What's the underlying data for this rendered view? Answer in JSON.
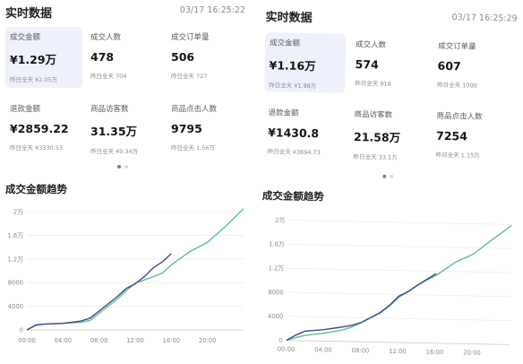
{
  "panels": [
    {
      "title": "实时数据",
      "time": "03/17 16:25:22",
      "metrics": [
        {
          "label": "成交金额",
          "value": "¥1.29万",
          "sub_label": "昨日全天",
          "sub_value": "¥2.05万"
        },
        {
          "label": "成交人数",
          "value": "478",
          "sub_label": "昨日全天",
          "sub_value": "704"
        },
        {
          "label": "成交订单量",
          "value": "506",
          "sub_label": "昨日全天",
          "sub_value": "727"
        },
        {
          "label": "退款金额",
          "value": "¥2859.22",
          "sub_label": "昨日全天",
          "sub_value": "¥3330.53"
        },
        {
          "label": "商品访客数",
          "value": "31.35万",
          "sub_label": "昨日全天",
          "sub_value": "49.34万"
        },
        {
          "label": "商品点击人数",
          "value": "9795",
          "sub_label": "昨日全天",
          "sub_value": "1.56万"
        }
      ],
      "active_metric": 0,
      "trend_title": "成交金额趋势"
    },
    {
      "title": "实时数据",
      "time": "03/17 16:25:29",
      "metrics": [
        {
          "label": "成交金额",
          "value": "¥1.16万",
          "sub_label": "昨日全天",
          "sub_value": "¥1.98万"
        },
        {
          "label": "成交人数",
          "value": "574",
          "sub_label": "昨日全天",
          "sub_value": "918"
        },
        {
          "label": "成交订单量",
          "value": "607",
          "sub_label": "昨日全天",
          "sub_value": "1000"
        },
        {
          "label": "退款金额",
          "value": "¥1430.8",
          "sub_label": "昨日全天",
          "sub_value": "¥3694.73"
        },
        {
          "label": "商品访客数",
          "value": "21.58万",
          "sub_label": "昨日全天",
          "sub_value": "33.1万"
        },
        {
          "label": "商品点击人数",
          "value": "7254",
          "sub_label": "昨日全天",
          "sub_value": "1.15万"
        }
      ],
      "active_metric": 0,
      "trend_title": "成交金额趋势"
    }
  ],
  "colors": {
    "today": "#3b4a8c",
    "yesterday": "#5bbf94",
    "active_card": "#eef1fb"
  },
  "chart_data": [
    {
      "type": "line",
      "x_labels": [
        "00:00",
        "04:00",
        "08:00",
        "12:00",
        "16:00",
        "20:00"
      ],
      "y_labels": [
        "0",
        "4000",
        "8000",
        "1.2万",
        "1.6万",
        "2万"
      ],
      "ylim": [
        0,
        20000
      ],
      "xlim": [
        0,
        24
      ],
      "grid": true,
      "series": [
        {
          "key": "today",
          "color": "#3b4a8c",
          "points": [
            [
              0,
              0
            ],
            [
              1,
              800
            ],
            [
              2,
              1000
            ],
            [
              4,
              1100
            ],
            [
              6,
              1500
            ],
            [
              7,
              2000
            ],
            [
              8,
              3200
            ],
            [
              10,
              5600
            ],
            [
              11,
              7000
            ],
            [
              12,
              7800
            ],
            [
              13,
              9000
            ],
            [
              14,
              10500
            ],
            [
              15,
              11500
            ],
            [
              16,
              12900
            ]
          ]
        },
        {
          "key": "yesterday",
          "color": "#5bbf94",
          "points": [
            [
              0,
              0
            ],
            [
              1,
              900
            ],
            [
              2,
              1000
            ],
            [
              4,
              1100
            ],
            [
              6,
              1300
            ],
            [
              7,
              1600
            ],
            [
              8,
              2800
            ],
            [
              10,
              5200
            ],
            [
              11,
              6600
            ],
            [
              12,
              7900
            ],
            [
              14,
              9000
            ],
            [
              15,
              9600
            ],
            [
              16,
              11000
            ],
            [
              18,
              13200
            ],
            [
              20,
              14800
            ],
            [
              22,
              17500
            ],
            [
              24,
              20500
            ]
          ]
        }
      ]
    },
    {
      "type": "line",
      "x_labels": [
        "00:00",
        "04:00",
        "08:00",
        "12:00",
        "16:00",
        "20:00"
      ],
      "y_labels": [
        "0",
        "4000",
        "8000",
        "1.2万",
        "1.6万",
        "2万"
      ],
      "ylim": [
        0,
        20000
      ],
      "xlim": [
        0,
        24
      ],
      "grid": true,
      "series": [
        {
          "key": "today",
          "color": "#3b4a8c",
          "points": [
            [
              0,
              0
            ],
            [
              1,
              900
            ],
            [
              2,
              1600
            ],
            [
              4,
              1900
            ],
            [
              6,
              2400
            ],
            [
              7,
              2700
            ],
            [
              8,
              3200
            ],
            [
              10,
              4900
            ],
            [
              11,
              6100
            ],
            [
              12,
              7700
            ],
            [
              13,
              8500
            ],
            [
              14,
              9600
            ],
            [
              15,
              10600
            ],
            [
              16,
              11600
            ]
          ]
        },
        {
          "key": "yesterday",
          "color": "#5bbf94",
          "points": [
            [
              0,
              0
            ],
            [
              1,
              500
            ],
            [
              2,
              900
            ],
            [
              4,
              1300
            ],
            [
              6,
              1900
            ],
            [
              7,
              2400
            ],
            [
              8,
              3200
            ],
            [
              10,
              4800
            ],
            [
              11,
              6000
            ],
            [
              12,
              7500
            ],
            [
              14,
              9600
            ],
            [
              15,
              10500
            ],
            [
              16,
              11300
            ],
            [
              18,
              13500
            ],
            [
              20,
              15000
            ],
            [
              22,
              17500
            ],
            [
              24,
              19800
            ]
          ]
        }
      ]
    }
  ]
}
